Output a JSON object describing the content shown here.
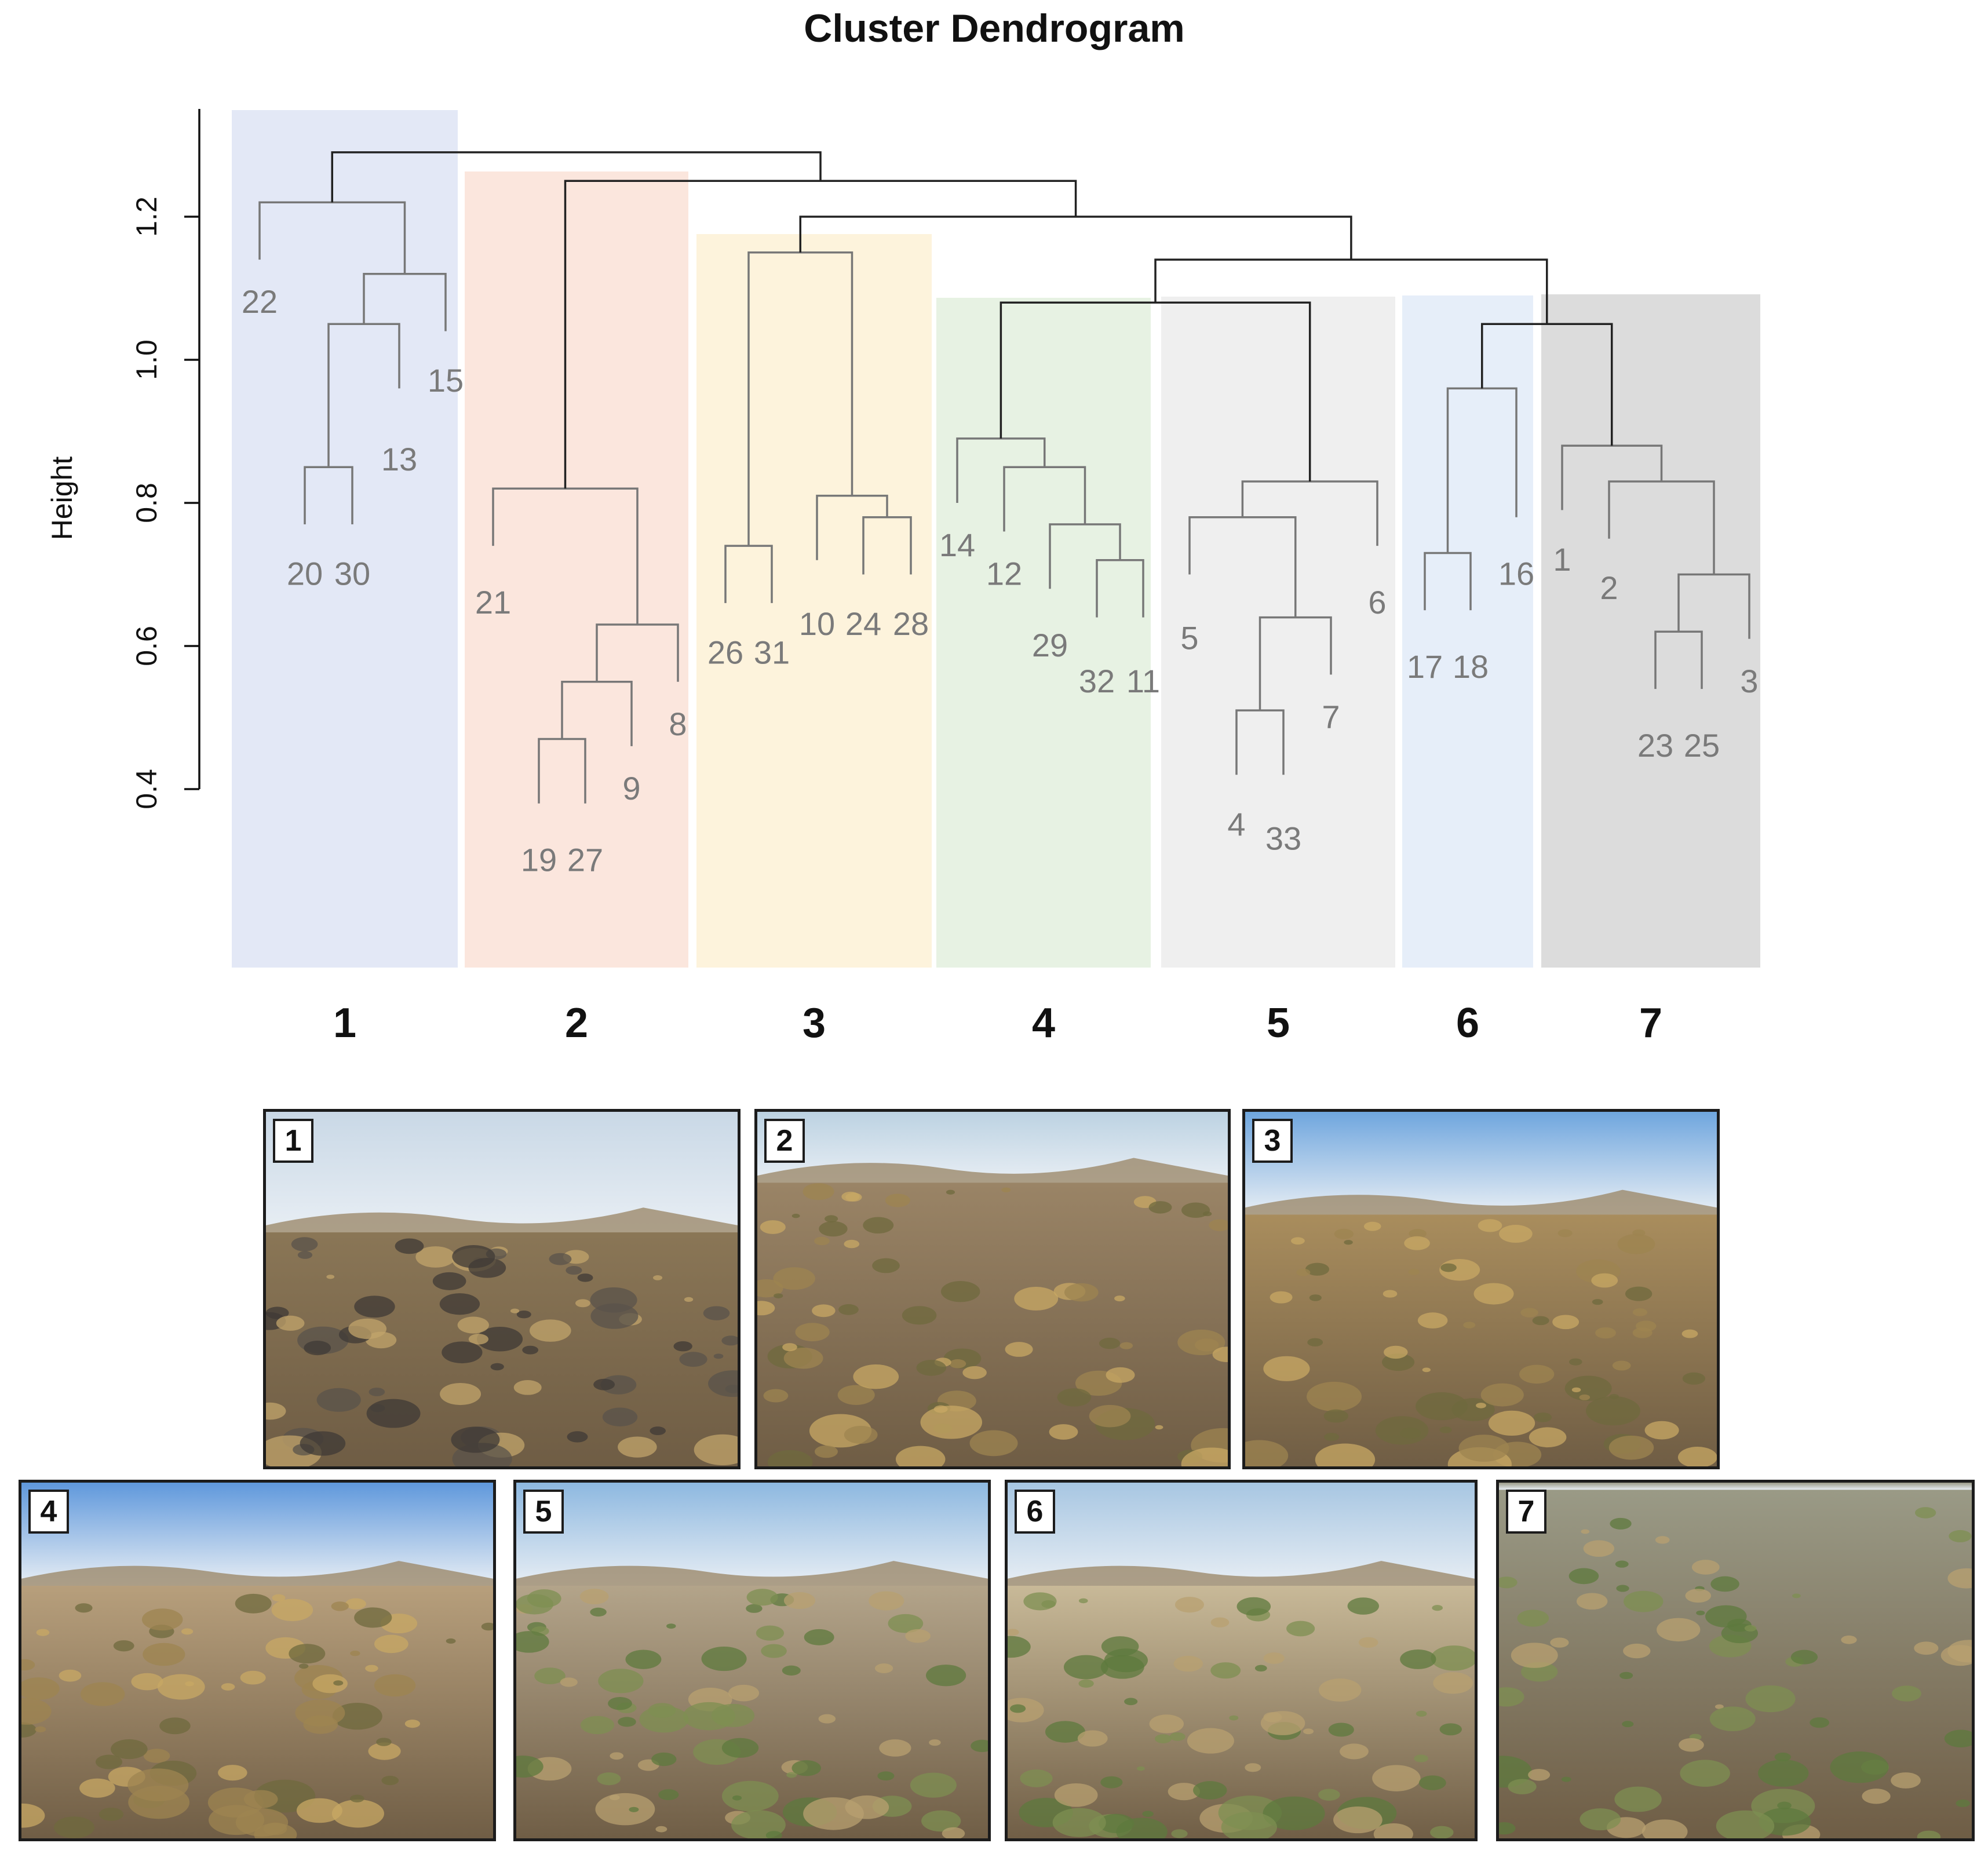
{
  "chart_data": {
    "type": "dendrogram",
    "title": "Cluster Dendrogram",
    "ylabel": "Height",
    "yticks": [
      "0.4",
      "0.6",
      "0.8",
      "1.0",
      "1.2"
    ],
    "ylim": [
      0.4,
      1.2
    ],
    "leaf_order": [
      "22",
      "20",
      "30",
      "13",
      "15",
      "21",
      "19",
      "27",
      "9",
      "8",
      "26",
      "31",
      "10",
      "24",
      "28",
      "14",
      "12",
      "29",
      "32",
      "11",
      "5",
      "4",
      "33",
      "7",
      "6",
      "17",
      "18",
      "16",
      "1",
      "2",
      "23",
      "25",
      "3"
    ],
    "merges": [
      {
        "children": [
          "20",
          "30"
        ],
        "height": 0.85
      },
      {
        "children": [
          "(20,30)",
          "13"
        ],
        "height": 1.05
      },
      {
        "children": [
          "((20,30),13)",
          "15"
        ],
        "height": 1.12
      },
      {
        "children": [
          "22",
          "(((20,30),13),15)"
        ],
        "height": 1.22
      },
      {
        "children": [
          "19",
          "27"
        ],
        "height": 0.47
      },
      {
        "children": [
          "(19,27)",
          "9"
        ],
        "height": 0.55
      },
      {
        "children": [
          "((19,27),9)",
          "8"
        ],
        "height": 0.63
      },
      {
        "children": [
          "21",
          "(((19,27),9),8)"
        ],
        "height": 0.82
      },
      {
        "children": [
          "26",
          "31"
        ],
        "height": 0.74
      },
      {
        "children": [
          "24",
          "28"
        ],
        "height": 0.78
      },
      {
        "children": [
          "10",
          "(24,28)"
        ],
        "height": 0.81
      },
      {
        "children": [
          "(26,31)",
          "(10,(24,28))"
        ],
        "height": 1.15
      },
      {
        "children": [
          "32",
          "11"
        ],
        "height": 0.72
      },
      {
        "children": [
          "29",
          "(32,11)"
        ],
        "height": 0.77
      },
      {
        "children": [
          "12",
          "(29,(32,11))"
        ],
        "height": 0.85
      },
      {
        "children": [
          "14",
          "(12,(29,(32,11)))"
        ],
        "height": 0.89
      },
      {
        "children": [
          "4",
          "33"
        ],
        "height": 0.51
      },
      {
        "children": [
          "(4,33)",
          "7"
        ],
        "height": 0.64
      },
      {
        "children": [
          "5",
          "((4,33),7)"
        ],
        "height": 0.78
      },
      {
        "children": [
          "(5,((4,33),7))",
          "6"
        ],
        "height": 0.83
      },
      {
        "children": [
          "17",
          "18"
        ],
        "height": 0.73
      },
      {
        "children": [
          "(17,18)",
          "16"
        ],
        "height": 0.96
      },
      {
        "children": [
          "23",
          "25"
        ],
        "height": 0.62
      },
      {
        "children": [
          "(23,25)",
          "3"
        ],
        "height": 0.7
      },
      {
        "children": [
          "2",
          "((23,25),3)"
        ],
        "height": 0.83
      },
      {
        "children": [
          "1",
          "(2,((23,25),3))"
        ],
        "height": 0.88
      },
      {
        "children": [
          "cluster6",
          "cluster7"
        ],
        "height": 1.05
      },
      {
        "children": [
          "cluster4",
          "cluster5"
        ],
        "height": 1.08
      },
      {
        "children": [
          "(cluster4,cluster5)",
          "(cluster6,cluster7)"
        ],
        "height": 1.14
      },
      {
        "children": [
          "cluster3",
          "(4,5,6,7)"
        ],
        "height": 1.2
      },
      {
        "children": [
          "cluster2",
          "(3..7)"
        ],
        "height": 1.25
      },
      {
        "children": [
          "cluster1",
          "(2..7)"
        ],
        "height": 1.29
      }
    ],
    "clusters": [
      {
        "label": "1",
        "leaves": [
          "22",
          "20",
          "30",
          "13",
          "15"
        ],
        "color": "#e3e8f6"
      },
      {
        "label": "2",
        "leaves": [
          "21",
          "19",
          "27",
          "9",
          "8"
        ],
        "color": "#fbe6dd"
      },
      {
        "label": "3",
        "leaves": [
          "26",
          "31",
          "10",
          "24",
          "28"
        ],
        "color": "#fdf3dc"
      },
      {
        "label": "4",
        "leaves": [
          "14",
          "12",
          "29",
          "32",
          "11"
        ],
        "color": "#e7f2e3"
      },
      {
        "label": "5",
        "leaves": [
          "5",
          "4",
          "33",
          "7",
          "6"
        ],
        "color": "#efefef"
      },
      {
        "label": "6",
        "leaves": [
          "17",
          "18",
          "16"
        ],
        "color": "#e6eef9"
      },
      {
        "label": "7",
        "leaves": [
          "1",
          "2",
          "23",
          "25",
          "3"
        ],
        "color": "#dcdcdc"
      }
    ]
  },
  "photos": [
    {
      "badge": "1",
      "scene": "rocky outcrop with dry bunch grasses under a hazy sky",
      "sky": "#c9d8e6",
      "ground": "#8a7656"
    },
    {
      "badge": "2",
      "scene": "dry grassy hillside slope",
      "sky": "#bcd2e2",
      "ground": "#9a8466"
    },
    {
      "badge": "3",
      "scene": "open plain with dry shrubs, distant hills",
      "sky": "#6fa6de",
      "ground": "#a98d5d"
    },
    {
      "badge": "4",
      "scene": "flat bare cracked soil with distant hills",
      "sky": "#5f98dc",
      "ground": "#b79f7c"
    },
    {
      "badge": "5",
      "scene": "sparse green plants on a flat plain",
      "sky": "#8db8e0",
      "ground": "#b3a48a"
    },
    {
      "badge": "6",
      "scene": "eroded sandy channel with green shrubs",
      "sky": "#a7c6e2",
      "ground": "#c8b998"
    },
    {
      "badge": "7",
      "scene": "close view of dry grass and green herbs",
      "sky": "#9a9a86",
      "ground": "#9a9a86"
    }
  ]
}
